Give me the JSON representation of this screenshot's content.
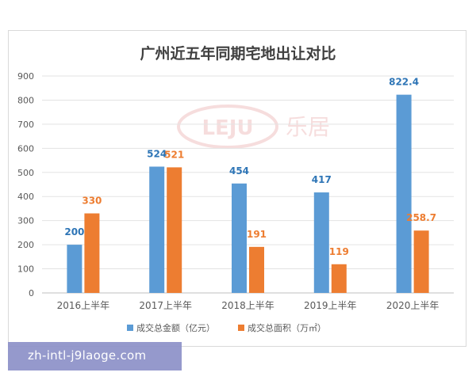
{
  "chart_data": {
    "type": "bar",
    "title": "广州近五年同期宅地出让对比",
    "categories": [
      "2016上半年",
      "2017上半年",
      "2018上半年",
      "2019上半年",
      "2020上半年"
    ],
    "series": [
      {
        "name": "成交总金额（亿元）",
        "color": "#5b9bd5",
        "label_color": "#2e75b6",
        "values": [
          200,
          524,
          454,
          417,
          822.4
        ],
        "labels": [
          "200",
          "524",
          "454",
          "417",
          "822.4"
        ]
      },
      {
        "name": "成交总面积（万㎡）",
        "color": "#ed7d31",
        "label_color": "#ed7d31",
        "values": [
          330,
          521,
          191,
          119,
          258.7
        ],
        "labels": [
          "330",
          "521",
          "191",
          "119",
          "258.7"
        ]
      }
    ],
    "ylim": [
      0,
      900
    ],
    "yticks": [
      "0",
      "100",
      "200",
      "300",
      "400",
      "500",
      "600",
      "700",
      "800",
      "900"
    ],
    "grid": true,
    "legend": "bottom",
    "xlabel": "",
    "ylabel": ""
  },
  "watermark": {
    "logo_text": "LEJU 乐居",
    "url_text": "zh-intl-j9laoge.com"
  }
}
